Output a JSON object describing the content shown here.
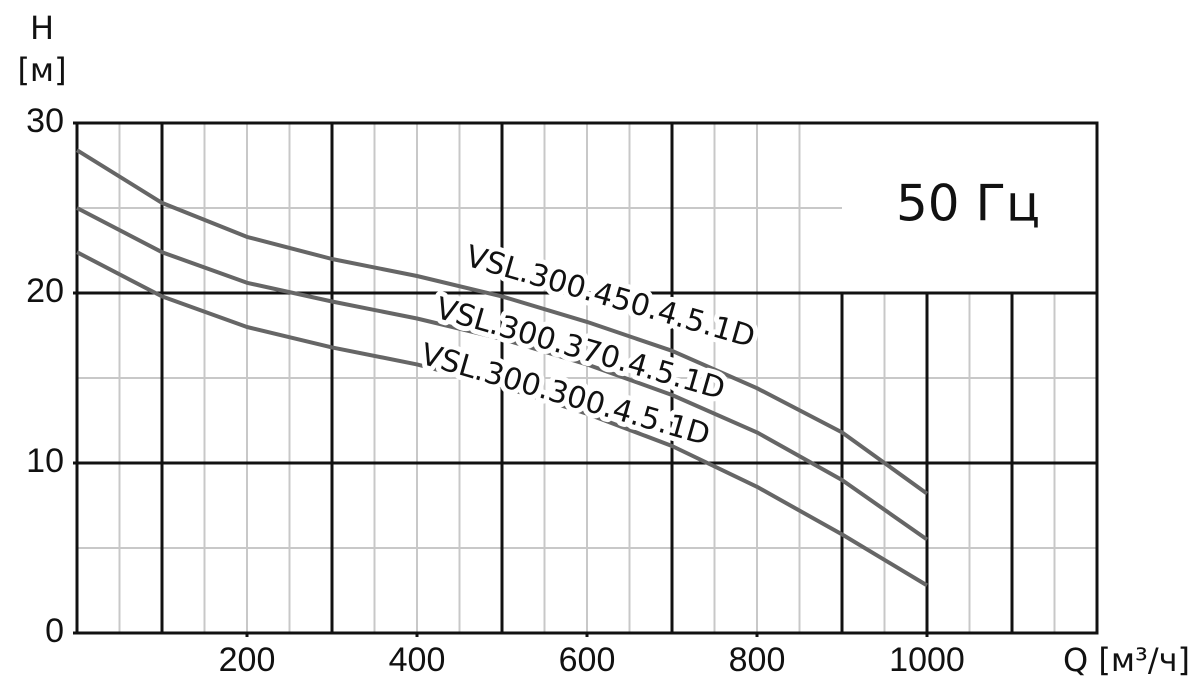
{
  "chart_data": {
    "type": "line",
    "y_label": "H",
    "y_unit": "[м]",
    "x_label": "Q [м³/ч]",
    "annotation": "50 Гц",
    "x": [
      0,
      100,
      200,
      300,
      400,
      500,
      600,
      700,
      800,
      900,
      1000
    ],
    "series": [
      {
        "name": "VSL.300.450.4.5.1D",
        "color": "#666666",
        "values": [
          28.4,
          25.3,
          23.3,
          22.0,
          21.0,
          19.8,
          18.3,
          16.6,
          14.4,
          11.8,
          8.2
        ]
      },
      {
        "name": "VSL.300.370.4.5.1D",
        "color": "#666666",
        "values": [
          25.0,
          22.4,
          20.6,
          19.5,
          18.5,
          17.3,
          15.8,
          14.0,
          11.8,
          9.0,
          5.5
        ]
      },
      {
        "name": "VSL.300.300.4.5.1D",
        "color": "#666666",
        "values": [
          22.4,
          19.8,
          18.0,
          16.8,
          15.8,
          14.5,
          12.9,
          11.0,
          8.6,
          5.8,
          2.8
        ]
      }
    ],
    "xlim": [
      0,
      1200
    ],
    "ylim": [
      0,
      30
    ],
    "xticks": [
      200,
      400,
      600,
      800,
      1000
    ],
    "yticks": [
      0,
      10,
      20,
      30
    ],
    "xgrid_major": [
      100,
      300,
      500,
      700,
      900,
      1000,
      1100
    ],
    "xgrid_minor": [
      50,
      150,
      200,
      250,
      350,
      400,
      450,
      550,
      600,
      650,
      750,
      800,
      850,
      950,
      1050,
      1150
    ],
    "ygrid_major": [
      10,
      20
    ],
    "ygrid_minor": [
      5,
      15,
      25
    ]
  }
}
